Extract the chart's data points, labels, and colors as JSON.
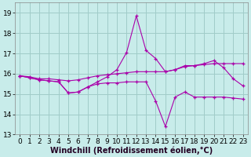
{
  "xlabel": "Windchill (Refroidissement éolien,°C)",
  "background_color": "#c8ecea",
  "grid_color": "#a0ccc8",
  "line_color": "#aa00aa",
  "ylim": [
    13,
    19.5
  ],
  "xlim": [
    -0.5,
    23.5
  ],
  "yticks": [
    13,
    14,
    15,
    16,
    17,
    18,
    19
  ],
  "xticks": [
    0,
    1,
    2,
    3,
    4,
    5,
    6,
    7,
    8,
    9,
    10,
    11,
    12,
    13,
    14,
    15,
    16,
    17,
    18,
    19,
    20,
    21,
    22,
    23
  ],
  "series1_x": [
    0,
    1,
    2,
    3,
    4,
    5,
    6,
    7,
    8,
    9,
    10,
    11,
    12,
    13,
    14,
    15,
    16,
    17,
    18,
    19,
    20,
    21,
    22,
    23
  ],
  "series1_y": [
    15.9,
    15.85,
    15.75,
    15.75,
    15.7,
    15.65,
    15.7,
    15.8,
    15.9,
    15.95,
    16.0,
    16.05,
    16.1,
    16.1,
    16.1,
    16.1,
    16.2,
    16.35,
    16.4,
    16.45,
    16.5,
    16.5,
    16.5,
    16.5
  ],
  "series2_x": [
    0,
    1,
    2,
    3,
    4,
    5,
    6,
    7,
    8,
    9,
    10,
    11,
    12,
    13,
    14,
    15,
    16,
    17,
    18,
    19,
    20,
    21,
    22,
    23
  ],
  "series2_y": [
    15.9,
    15.8,
    15.7,
    15.65,
    15.6,
    15.05,
    15.1,
    15.35,
    15.6,
    15.85,
    16.2,
    17.05,
    18.85,
    17.15,
    16.75,
    16.1,
    16.2,
    16.4,
    16.4,
    16.5,
    16.65,
    16.3,
    15.75,
    15.4
  ],
  "series3_x": [
    0,
    1,
    2,
    3,
    4,
    5,
    6,
    7,
    8,
    9,
    10,
    11,
    12,
    13,
    14,
    15,
    16,
    17,
    18,
    19,
    20,
    21,
    22,
    23
  ],
  "series3_y": [
    15.9,
    15.8,
    15.7,
    15.65,
    15.6,
    15.05,
    15.1,
    15.35,
    15.5,
    15.55,
    15.55,
    15.6,
    15.6,
    15.6,
    14.65,
    13.4,
    14.85,
    15.1,
    14.85,
    14.85,
    14.85,
    14.85,
    14.8,
    14.75
  ],
  "xlabel_fontsize": 7.0,
  "tick_fontsize": 6.5,
  "title_fontsize": 7.0
}
